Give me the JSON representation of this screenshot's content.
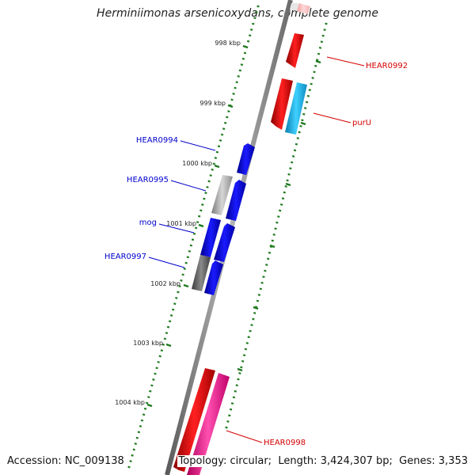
{
  "title": "Herminiimonas arsenicoxydans, complete genome",
  "footer": {
    "accession_label": "Accession:",
    "accession": "NC_009138",
    "topology_label": "Topology:",
    "topology": "circular",
    "length_label": "Length:",
    "length": "3,424,307 bp",
    "genes_label": "Genes:",
    "genes": "3,353"
  },
  "scale_ticks": [
    {
      "label": "998 kbp"
    },
    {
      "label": "999 kbp"
    },
    {
      "label": "1000 kbp"
    },
    {
      "label": "1001 kbp"
    },
    {
      "label": "1002 kbp"
    },
    {
      "label": "1003 kbp"
    },
    {
      "label": "1004 kbp"
    }
  ],
  "gene_labels": [
    {
      "name": "HEAR0992",
      "color": "#d40000"
    },
    {
      "name": "purU",
      "color": "#d40000"
    },
    {
      "name": "HEAR0994",
      "color": "#0000cc"
    },
    {
      "name": "HEAR0995",
      "color": "#0000cc"
    },
    {
      "name": "mog",
      "color": "#0000cc"
    },
    {
      "name": "HEAR0997",
      "color": "#0000cc"
    },
    {
      "name": "HEAR0998",
      "color": "#d40000"
    }
  ],
  "colors": {
    "backbone": "#8a8a8a",
    "tick": "#1f7a1f",
    "red_gene": "#e00000",
    "cyan_gene": "#16b4e6",
    "blue_gene": "#0000e6",
    "pink_gene": "#f0329a",
    "gray_gene": "#a8a8a8",
    "dark_gray_gene": "#5a5a5a"
  }
}
